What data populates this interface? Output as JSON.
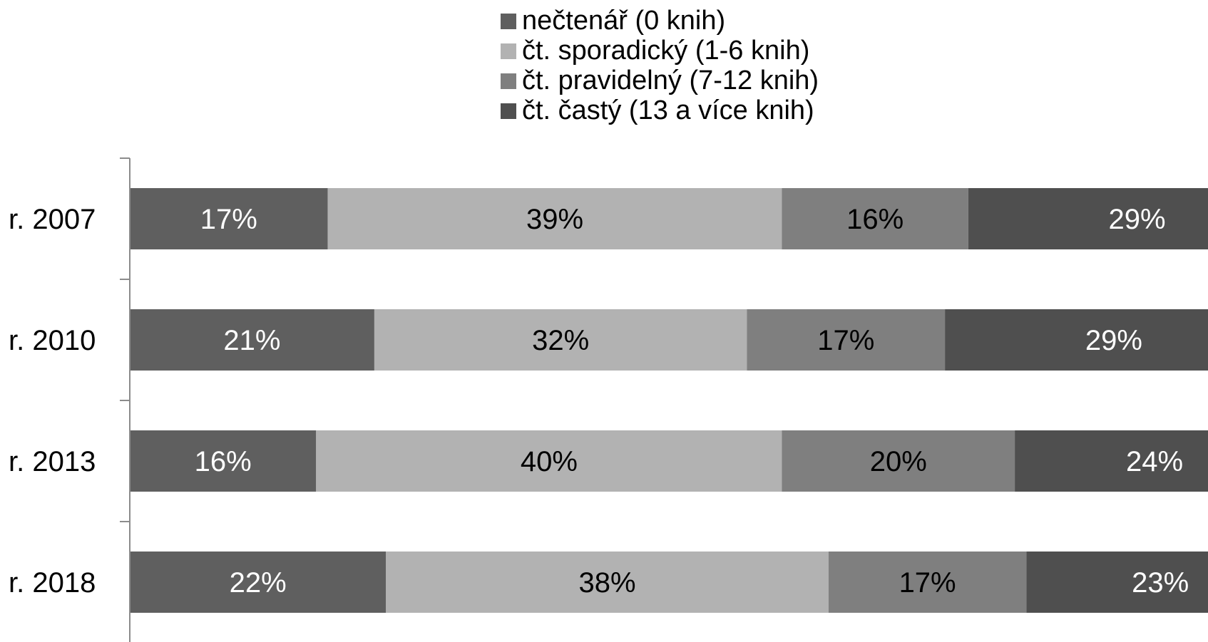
{
  "chart_data": {
    "type": "bar",
    "orientation": "horizontal",
    "stacked": true,
    "categories": [
      "r. 2007",
      "r. 2010",
      "r. 2013",
      "r. 2018"
    ],
    "series": [
      {
        "name": "nečtenář (0 knih)",
        "color": "#5f5f5f",
        "label_color": "#ffffff",
        "values": [
          17,
          21,
          16,
          22
        ]
      },
      {
        "name": "čt. sporadický (1-6 knih)",
        "color": "#b2b2b2",
        "label_color": "#000000",
        "values": [
          39,
          32,
          40,
          38
        ]
      },
      {
        "name": "čt. pravidelný (7-12 knih)",
        "color": "#7f7f7f",
        "label_color": "#000000",
        "values": [
          16,
          17,
          20,
          17
        ]
      },
      {
        "name": "čt. častý (13 a více knih)",
        "color": "#4f4f4f",
        "label_color": "#ffffff",
        "values": [
          29,
          29,
          24,
          23
        ]
      }
    ],
    "value_suffix": "%",
    "legend_position": "top",
    "grid": false
  }
}
